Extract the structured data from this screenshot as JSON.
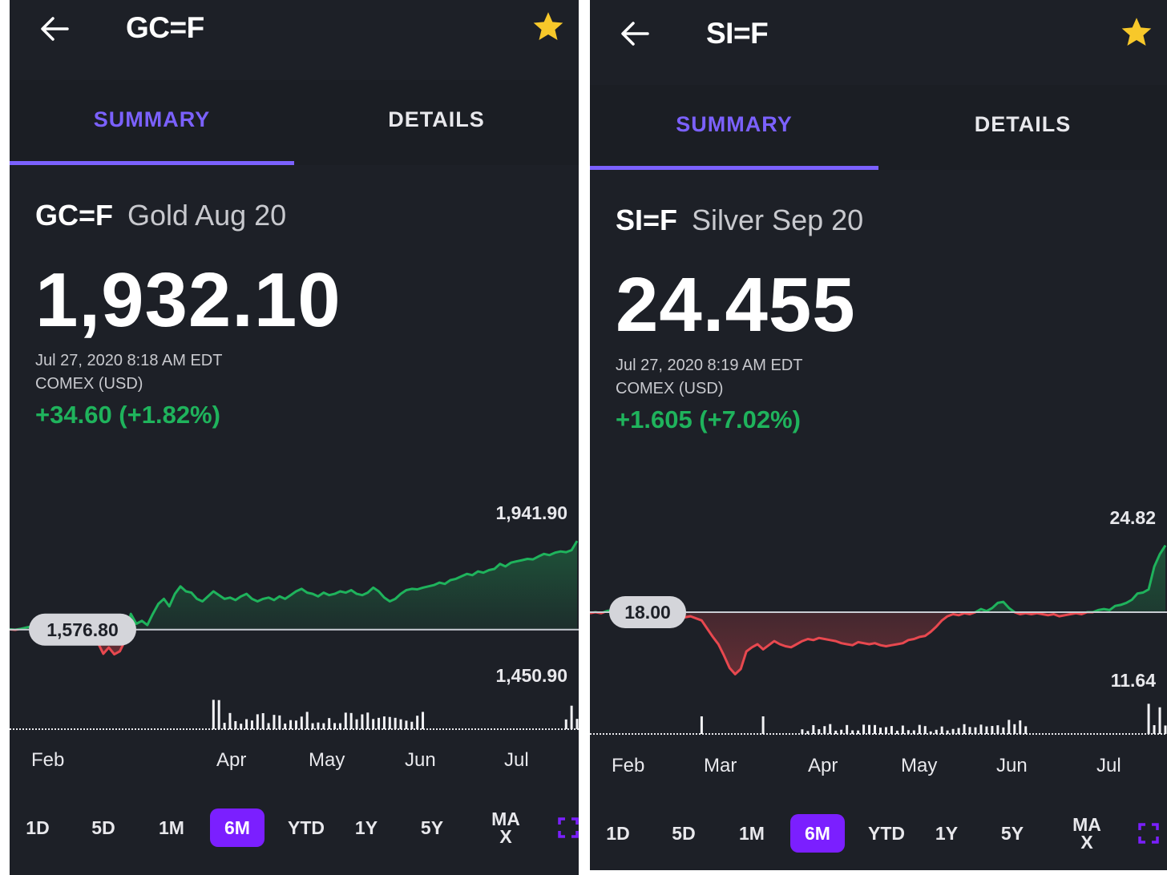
{
  "left": {
    "title": "GC=F",
    "tabs": {
      "summary": "SUMMARY",
      "details": "DETAILS"
    },
    "symbol": "GC=F",
    "name": "Gold Aug 20",
    "price": "1,932.10",
    "timestamp": "Jul 27, 2020 8:18 AM EDT",
    "exchange": "COMEX (USD)",
    "change": "+34.60 (+1.82%)",
    "favorited": true,
    "chart": {
      "high_label": "1,941.90",
      "low_label": "1,450.90",
      "prev_close_label": "1,576.80"
    },
    "months": [
      "Feb",
      "Apr",
      "May",
      "Jun",
      "Jul"
    ],
    "ranges": [
      "1D",
      "5D",
      "1M",
      "6M",
      "YTD",
      "1Y",
      "5Y",
      "MA\nX"
    ],
    "selected_range": "6M"
  },
  "right": {
    "title": "SI=F",
    "tabs": {
      "summary": "SUMMARY",
      "details": "DETAILS"
    },
    "symbol": "SI=F",
    "name": "Silver Sep 20",
    "price": "24.455",
    "timestamp": "Jul 27, 2020 8:19 AM EDT",
    "exchange": "COMEX (USD)",
    "change": "+1.605 (+7.02%)",
    "favorited": true,
    "chart": {
      "high_label": "24.82",
      "low_label": "11.64",
      "prev_close_label": "18.00"
    },
    "months": [
      "Feb",
      "Mar",
      "Apr",
      "May",
      "Jun",
      "Jul"
    ],
    "ranges": [
      "1D",
      "5D",
      "1M",
      "6M",
      "YTD",
      "1Y",
      "5Y",
      "MA\nX"
    ],
    "selected_range": "6M"
  },
  "colors": {
    "accent": "#7b61ff",
    "selected_range_bg": "#7b1fff",
    "up": "#1fb35c",
    "down": "#e8484f",
    "background": "#1d2027",
    "star": "#f7c82a"
  },
  "chart_data": [
    {
      "type": "area",
      "series": [
        {
          "values": [
            1578,
            1576,
            1580,
            1585,
            1590,
            1600,
            1610,
            1632,
            1620,
            1605,
            1610,
            1625,
            1628,
            1620,
            1590,
            1560,
            1525,
            1480,
            1505,
            1478,
            1490,
            1535,
            1640,
            1600,
            1612,
            1595,
            1640,
            1680,
            1700,
            1670,
            1720,
            1750,
            1730,
            1725,
            1700,
            1690,
            1710,
            1730,
            1715,
            1700,
            1705,
            1695,
            1710,
            1720,
            1700,
            1690,
            1700,
            1705,
            1695,
            1710,
            1700,
            1715,
            1730,
            1740,
            1725,
            1720,
            1710,
            1725,
            1715,
            1720,
            1730,
            1725,
            1735,
            1720,
            1715,
            1725,
            1745,
            1730,
            1705,
            1690,
            1700,
            1720,
            1735,
            1740,
            1738,
            1745,
            1750,
            1755,
            1765,
            1760,
            1775,
            1780,
            1790,
            1800,
            1795,
            1810,
            1805,
            1815,
            1820,
            1840,
            1830,
            1845,
            1850,
            1855,
            1860,
            1858,
            1870,
            1880,
            1875,
            1885,
            1890,
            1887,
            1895,
            1932
          ]
        }
      ],
      "ylim": [
        1450.9,
        1941.9
      ],
      "reference_line": 1576.8,
      "x_labels": [
        "Feb",
        "Apr",
        "May",
        "Jun",
        "Jul"
      ],
      "grid": false
    },
    {
      "type": "area",
      "series": [
        {
          "values": [
            17.9,
            18.0,
            17.9,
            18.1,
            18.2,
            18.0,
            18.05,
            18.2,
            18.3,
            18.4,
            18.2,
            18.1,
            18.0,
            18.1,
            17.6,
            17.3,
            17.4,
            17.5,
            17.6,
            17.4,
            17.2,
            16.4,
            15.6,
            14.9,
            13.8,
            12.6,
            12.0,
            12.5,
            14.2,
            14.6,
            14.9,
            14.4,
            14.8,
            15.2,
            14.9,
            14.7,
            14.6,
            14.9,
            15.2,
            15.4,
            15.3,
            15.5,
            15.4,
            15.3,
            15.2,
            15.0,
            14.9,
            14.8,
            15.1,
            15.0,
            14.9,
            15.0,
            14.8,
            14.7,
            14.8,
            14.9,
            15.0,
            15.3,
            15.4,
            15.6,
            15.7,
            16.1,
            16.6,
            17.2,
            17.6,
            17.8,
            17.7,
            17.9,
            17.8,
            18.0,
            18.3,
            18.1,
            18.4,
            18.9,
            19.0,
            18.4,
            18.0,
            17.8,
            17.9,
            17.8,
            17.9,
            17.8,
            17.7,
            17.8,
            17.6,
            17.7,
            17.8,
            17.9,
            17.8,
            18.0,
            18.0,
            18.2,
            18.3,
            18.2,
            18.6,
            18.7,
            18.9,
            19.2,
            19.8,
            19.9,
            20.2,
            22.4,
            23.6,
            24.455
          ]
        }
      ],
      "ylim": [
        11.64,
        24.82
      ],
      "reference_line": 18.0,
      "x_labels": [
        "Feb",
        "Mar",
        "Apr",
        "May",
        "Jun",
        "Jul"
      ],
      "grid": false
    }
  ]
}
